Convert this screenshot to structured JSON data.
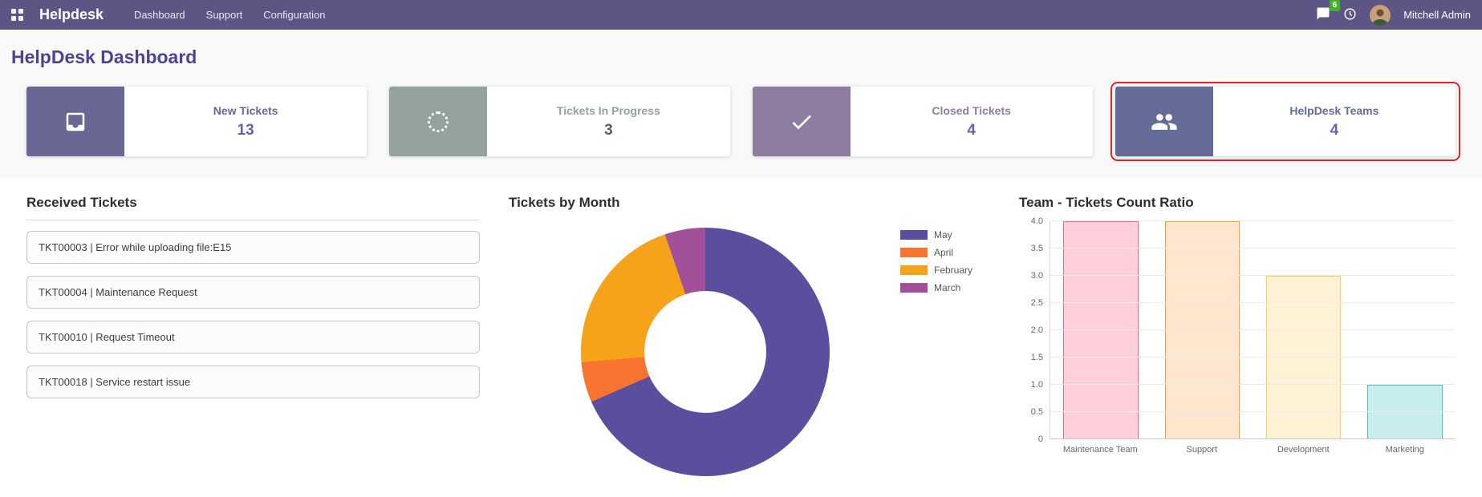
{
  "navbar": {
    "brand": "Helpdesk",
    "menu": [
      "Dashboard",
      "Support",
      "Configuration"
    ],
    "icons": [
      "apps-grid-icon",
      "chat-icon",
      "activity-icon"
    ],
    "messages_badge": "6",
    "messages_badge_color": "#43b02a",
    "bg_color": "#5b5683",
    "user": "Mitchell Admin"
  },
  "page": {
    "title": "HelpDesk Dashboard",
    "title_color": "#4a4492"
  },
  "stat_cards": [
    {
      "label": "New Tickets",
      "value": "13",
      "icon": "inbox-icon",
      "color": "#6b6794",
      "value_color": "#6a5fae",
      "highlighted": false
    },
    {
      "label": "Tickets In Progress",
      "value": "3",
      "icon": "spinner-icon",
      "color": "#93a39c",
      "value_color": "#555f66",
      "highlighted": false
    },
    {
      "label": "Closed Tickets",
      "value": "4",
      "icon": "check-icon",
      "color": "#8f7da1",
      "value_color": "#6a5fae",
      "highlighted": false
    },
    {
      "label": "HelpDesk Teams",
      "value": "4",
      "icon": "users-icon",
      "color": "#646b97",
      "value_color": "#6a5fae",
      "highlighted": true,
      "highlight_color": "#e82222"
    }
  ],
  "received_tickets": {
    "title": "Received Tickets",
    "items": [
      "TKT00003 | Error while uploading file:E15",
      "TKT00004 | Maintenance Request",
      "TKT00010 | Request Timeout",
      "TKT00018 | Service restart issue"
    ]
  },
  "chart_data": [
    {
      "type": "pie",
      "donut": true,
      "title": "Tickets by Month",
      "labels": [
        "May",
        "April",
        "February",
        "March"
      ],
      "values": [
        13,
        1,
        4,
        1
      ],
      "colors": [
        "#5c4e9e",
        "#f97430",
        "#f6a21b",
        "#a3509a"
      ],
      "legend_position": "right"
    },
    {
      "type": "bar",
      "title": "Team - Tickets Count Ratio",
      "categories": [
        "Maintenance Team",
        "Support",
        "Development",
        "Marketing"
      ],
      "values": [
        4,
        4,
        3,
        1
      ],
      "ylim": [
        0,
        4
      ],
      "yticks": [
        0,
        0.5,
        1,
        1.5,
        2,
        2.5,
        3,
        3.5,
        4
      ],
      "fill_colors": [
        "rgba(255,99,132,0.3)",
        "rgba(255,159,64,0.25)",
        "rgba(255,205,86,0.25)",
        "rgba(75,192,192,0.3)"
      ],
      "border_colors": [
        "#ff6384",
        "#ff9f40",
        "#ffcd56",
        "#4bc0c0"
      ],
      "grid": true,
      "legend": "hidden"
    }
  ]
}
